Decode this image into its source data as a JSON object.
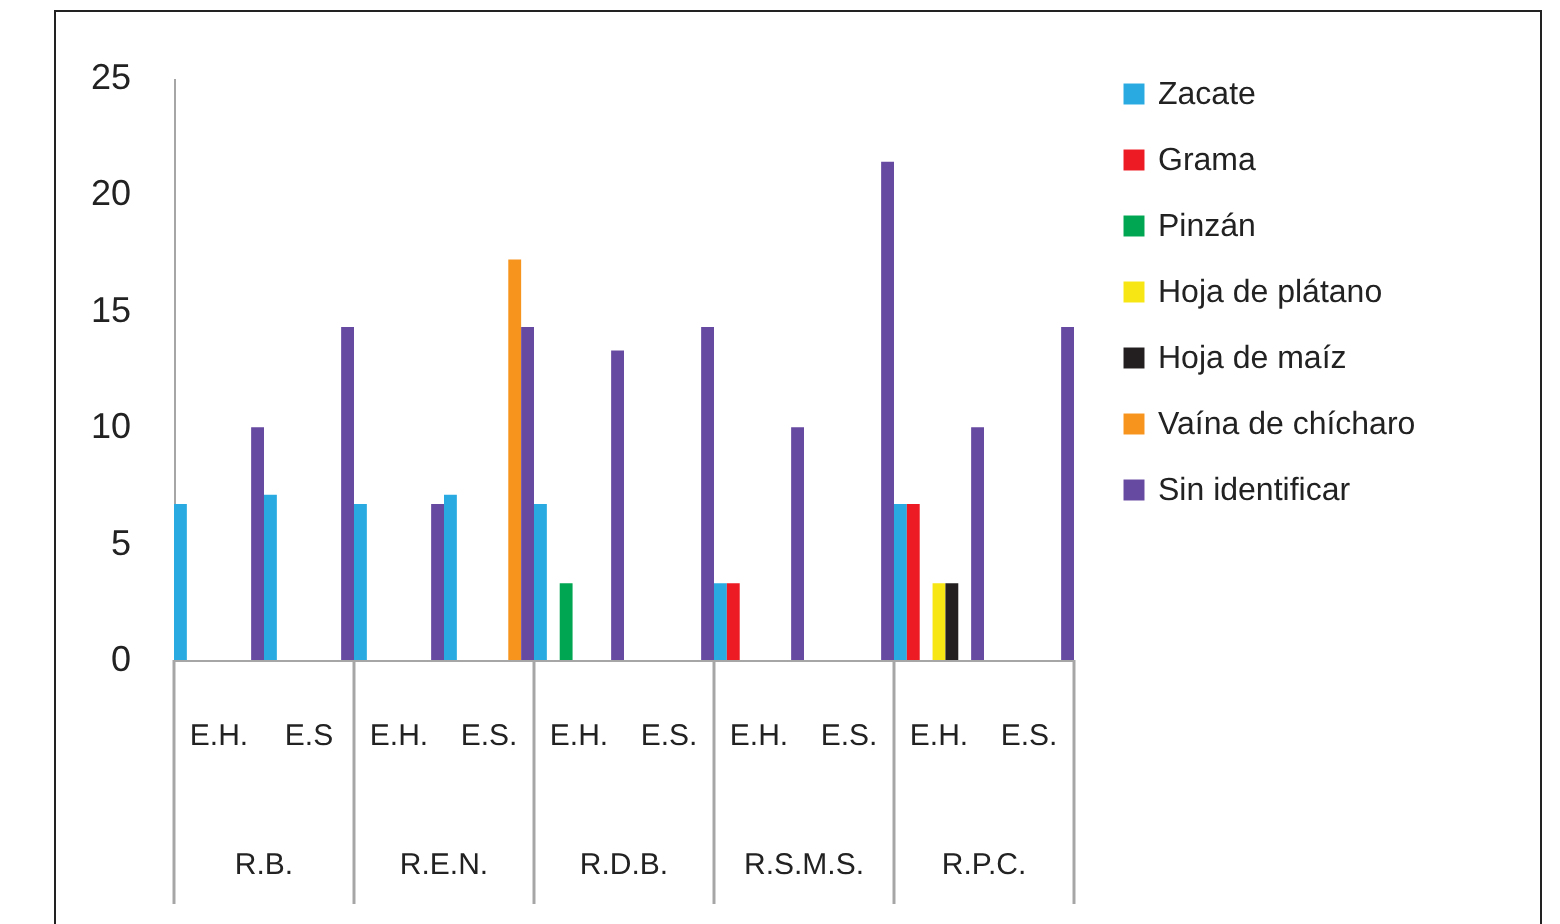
{
  "chart_data": {
    "type": "bar",
    "categories": [
      "E.H.",
      "E.S",
      "E.H.",
      "E.S.",
      "E.H.",
      "E.S.",
      "E.H.",
      "E.S.",
      "E.H.",
      "E.S."
    ],
    "annotations": [
      "R.B.",
      "R.E.N.",
      "R.D.B.",
      "R.S.M.S.",
      "R.P.C."
    ],
    "series": [
      {
        "name": "Zacate",
        "color": "#29abe2",
        "values": [
          6.7,
          7.1,
          6.7,
          7.1,
          6.7,
          0,
          3.3,
          0,
          6.7,
          0
        ]
      },
      {
        "name": "Grama",
        "color": "#ed1c24",
        "values": [
          0,
          0,
          0,
          0,
          0,
          0,
          3.3,
          0,
          6.7,
          0
        ]
      },
      {
        "name": "Pinzán",
        "color": "#00a651",
        "values": [
          0,
          0,
          0,
          0,
          3.3,
          0,
          0,
          0,
          0,
          0
        ]
      },
      {
        "name": "Hoja de plátano",
        "color": "#f7e613",
        "values": [
          0,
          0,
          0,
          0,
          0,
          0,
          0,
          0,
          3.3,
          0
        ]
      },
      {
        "name": "Hoja de maíz",
        "color": "#231f20",
        "values": [
          0,
          0,
          0,
          0,
          0,
          0,
          0,
          0,
          3.3,
          0
        ]
      },
      {
        "name": "Vaína de chícharo",
        "color": "#f7941d",
        "values": [
          0,
          0,
          0,
          17.2,
          0,
          0,
          0,
          0,
          0,
          0
        ]
      },
      {
        "name": "Sin identificar",
        "color": "#6649a0",
        "values": [
          10,
          14.3,
          6.7,
          14.3,
          13.3,
          14.3,
          10,
          21.4,
          10,
          14.3
        ]
      }
    ],
    "ylim": [
      0,
      25
    ],
    "yticks": [
      0,
      5,
      10,
      15,
      20,
      25
    ],
    "legend": "right"
  }
}
